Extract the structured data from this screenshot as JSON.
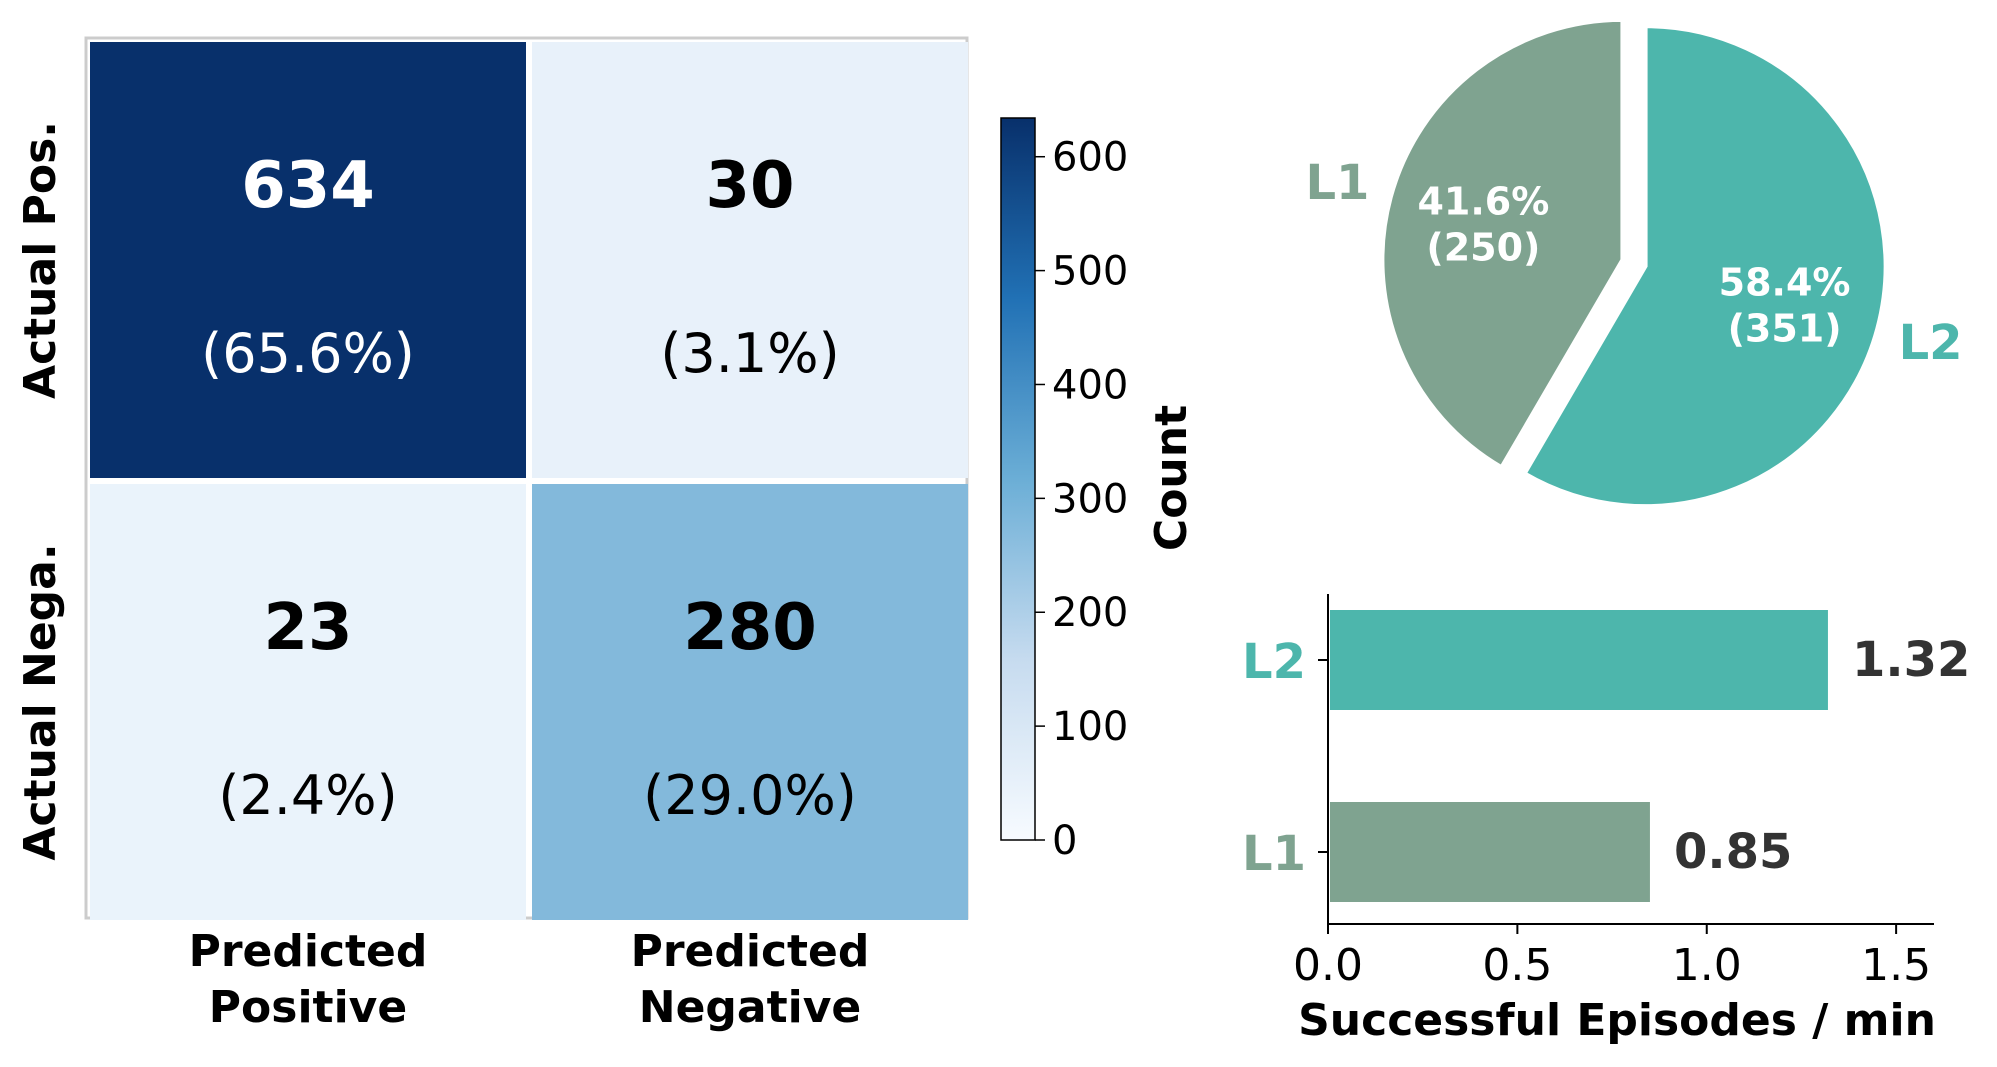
{
  "chart_data": [
    {
      "type": "heatmap",
      "rows": [
        "Actual Pos.",
        "Actual Nega."
      ],
      "columns": [
        [
          "Predicted",
          "Positive"
        ],
        [
          "Predicted",
          "Negative"
        ]
      ],
      "cells": [
        [
          {
            "value": 634,
            "pct": "(65.6%)",
            "color": "#08306b",
            "text_color": "#ffffff"
          },
          {
            "value": 30,
            "pct": "(3.1%)",
            "color": "#e8f1fa",
            "text_color": "#000000"
          }
        ],
        [
          {
            "value": 23,
            "pct": "(2.4%)",
            "color": "#eaf3fb",
            "text_color": "#000000"
          },
          {
            "value": 280,
            "pct": "(29.0%)",
            "color": "#83b9db",
            "text_color": "#000000"
          }
        ]
      ],
      "colorbar": {
        "label": "Count",
        "ticks": [
          "0",
          "100",
          "200",
          "300",
          "400",
          "500",
          "600"
        ],
        "range": [
          0,
          634
        ],
        "colormap": "Blues"
      }
    },
    {
      "type": "pie",
      "slices": [
        {
          "label": "L1",
          "pct_label": "41.6%",
          "count_label": "(250)",
          "value": 250,
          "color": "#7fa390"
        },
        {
          "label": "L2",
          "pct_label": "58.4%",
          "count_label": "(351)",
          "value": 351,
          "color": "#4db6ac"
        }
      ]
    },
    {
      "type": "bar",
      "orientation": "horizontal",
      "categories": [
        "L2",
        "L1"
      ],
      "values": [
        1.32,
        0.85
      ],
      "value_labels": [
        "1.32",
        "0.85"
      ],
      "colors": [
        "#4db6ac",
        "#7fa390"
      ],
      "xlabel": "Successful Episodes / min",
      "xticks": [
        "0.0",
        "0.5",
        "1.0",
        "1.5"
      ],
      "xlim": [
        0,
        1.6
      ]
    }
  ]
}
